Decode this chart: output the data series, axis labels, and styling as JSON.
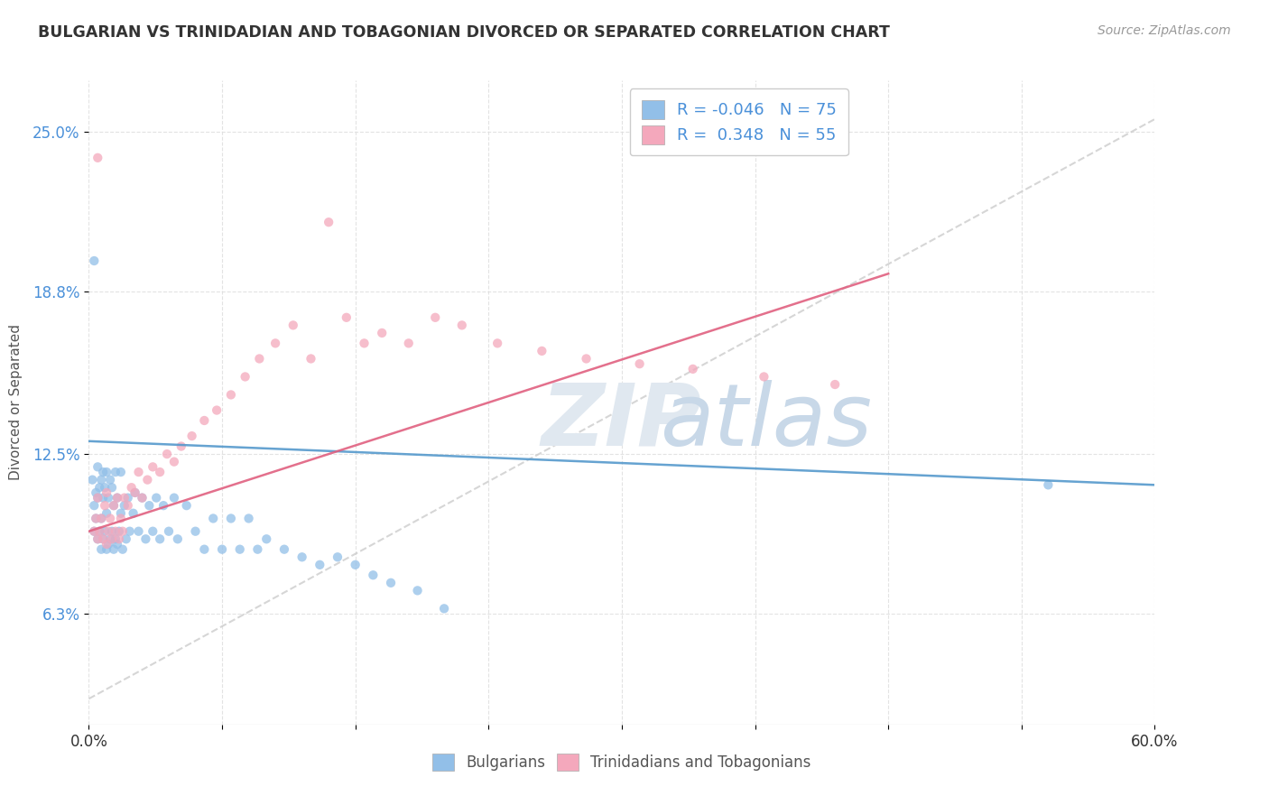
{
  "title": "BULGARIAN VS TRINIDADIAN AND TOBAGONIAN DIVORCED OR SEPARATED CORRELATION CHART",
  "source_text": "Source: ZipAtlas.com",
  "ylabel": "Divorced or Separated",
  "ytick_labels": [
    "6.3%",
    "12.5%",
    "18.8%",
    "25.0%"
  ],
  "ytick_values": [
    0.063,
    0.125,
    0.188,
    0.25
  ],
  "xlim": [
    0.0,
    0.6
  ],
  "ylim": [
    0.02,
    0.27
  ],
  "legend_bottom": [
    "Bulgarians",
    "Trinidadians and Tobagonians"
  ],
  "scatter_blue_color": "#92bfe8",
  "scatter_pink_color": "#f4a8bc",
  "line_blue_color": "#5599cc",
  "line_pink_color": "#e06080",
  "line_gray_color": "#cccccc",
  "blue_line_x": [
    0.0,
    0.6
  ],
  "blue_line_y": [
    0.13,
    0.113
  ],
  "pink_line_x": [
    0.0,
    0.45
  ],
  "pink_line_y": [
    0.095,
    0.195
  ],
  "gray_line_x": [
    0.0,
    0.6
  ],
  "gray_line_y": [
    0.03,
    0.255
  ],
  "blue_points_x": [
    0.002,
    0.003,
    0.003,
    0.004,
    0.004,
    0.005,
    0.005,
    0.005,
    0.006,
    0.006,
    0.007,
    0.007,
    0.007,
    0.008,
    0.008,
    0.008,
    0.009,
    0.009,
    0.01,
    0.01,
    0.01,
    0.011,
    0.011,
    0.012,
    0.012,
    0.013,
    0.013,
    0.014,
    0.014,
    0.015,
    0.015,
    0.016,
    0.016,
    0.017,
    0.018,
    0.018,
    0.019,
    0.02,
    0.021,
    0.022,
    0.023,
    0.025,
    0.026,
    0.028,
    0.03,
    0.032,
    0.034,
    0.036,
    0.038,
    0.04,
    0.042,
    0.045,
    0.048,
    0.05,
    0.055,
    0.06,
    0.065,
    0.07,
    0.075,
    0.08,
    0.085,
    0.09,
    0.095,
    0.1,
    0.11,
    0.12,
    0.13,
    0.14,
    0.15,
    0.16,
    0.17,
    0.185,
    0.2,
    0.54,
    0.003
  ],
  "blue_points_y": [
    0.115,
    0.095,
    0.105,
    0.1,
    0.11,
    0.092,
    0.108,
    0.12,
    0.095,
    0.112,
    0.088,
    0.1,
    0.115,
    0.092,
    0.108,
    0.118,
    0.095,
    0.112,
    0.088,
    0.102,
    0.118,
    0.09,
    0.108,
    0.092,
    0.115,
    0.095,
    0.112,
    0.088,
    0.105,
    0.092,
    0.118,
    0.09,
    0.108,
    0.095,
    0.102,
    0.118,
    0.088,
    0.105,
    0.092,
    0.108,
    0.095,
    0.102,
    0.11,
    0.095,
    0.108,
    0.092,
    0.105,
    0.095,
    0.108,
    0.092,
    0.105,
    0.095,
    0.108,
    0.092,
    0.105,
    0.095,
    0.088,
    0.1,
    0.088,
    0.1,
    0.088,
    0.1,
    0.088,
    0.092,
    0.088,
    0.085,
    0.082,
    0.085,
    0.082,
    0.078,
    0.075,
    0.072,
    0.065,
    0.113,
    0.2
  ],
  "pink_points_x": [
    0.003,
    0.004,
    0.005,
    0.005,
    0.006,
    0.007,
    0.008,
    0.009,
    0.01,
    0.01,
    0.011,
    0.012,
    0.013,
    0.014,
    0.015,
    0.016,
    0.017,
    0.018,
    0.019,
    0.02,
    0.022,
    0.024,
    0.026,
    0.028,
    0.03,
    0.033,
    0.036,
    0.04,
    0.044,
    0.048,
    0.052,
    0.058,
    0.065,
    0.072,
    0.08,
    0.088,
    0.096,
    0.105,
    0.115,
    0.125,
    0.135,
    0.145,
    0.155,
    0.165,
    0.18,
    0.195,
    0.21,
    0.23,
    0.255,
    0.28,
    0.31,
    0.34,
    0.38,
    0.42,
    0.005
  ],
  "pink_points_y": [
    0.095,
    0.1,
    0.092,
    0.108,
    0.095,
    0.1,
    0.092,
    0.105,
    0.09,
    0.11,
    0.095,
    0.1,
    0.092,
    0.105,
    0.095,
    0.108,
    0.092,
    0.1,
    0.095,
    0.108,
    0.105,
    0.112,
    0.11,
    0.118,
    0.108,
    0.115,
    0.12,
    0.118,
    0.125,
    0.122,
    0.128,
    0.132,
    0.138,
    0.142,
    0.148,
    0.155,
    0.162,
    0.168,
    0.175,
    0.162,
    0.215,
    0.178,
    0.168,
    0.172,
    0.168,
    0.178,
    0.175,
    0.168,
    0.165,
    0.162,
    0.16,
    0.158,
    0.155,
    0.152,
    0.24
  ]
}
